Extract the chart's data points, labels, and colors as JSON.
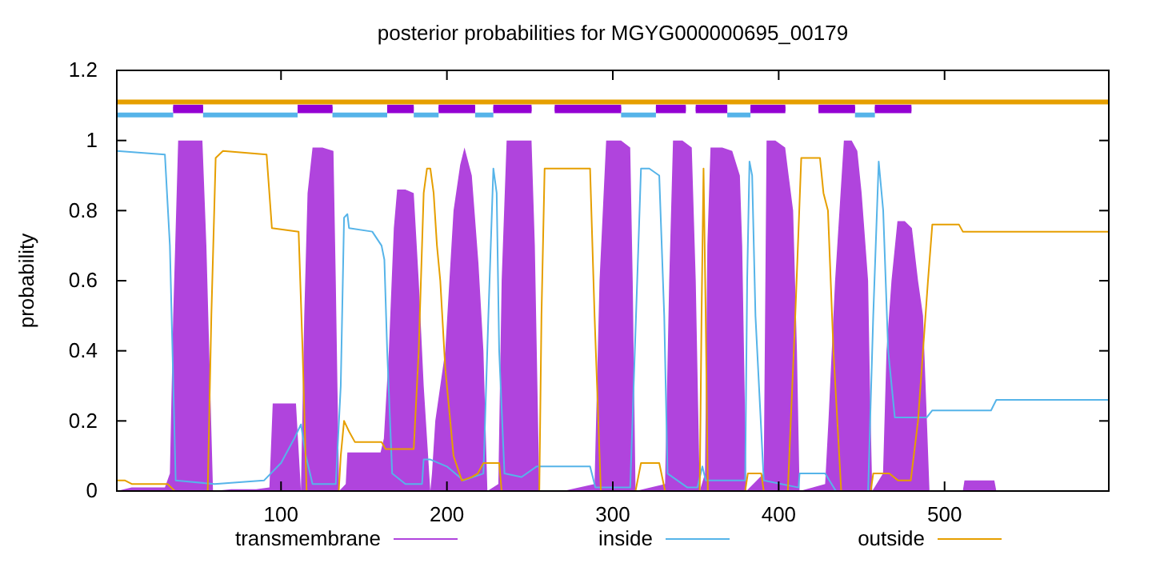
{
  "chart_data": {
    "type": "line",
    "title": "posterior probabilities for MGYG000000695_00179",
    "ylabel": "probability",
    "xlim": [
      1,
      599
    ],
    "xticks": [
      100,
      200,
      300,
      400,
      500
    ],
    "ylim": [
      0,
      1.2
    ],
    "yticks": [
      0,
      {
        "value": 0.2,
        "label": "0.2"
      },
      {
        "value": 0.4,
        "label": "0.4"
      },
      {
        "value": 0.6,
        "label": "0.6"
      },
      {
        "value": 0.8,
        "label": "0.8"
      },
      1,
      {
        "value": 1.2,
        "label": "1.2"
      }
    ],
    "grid": false,
    "legend": "bottom",
    "series": [
      {
        "name": "transmembrane",
        "type": "area",
        "color": "#b044dd",
        "x": [
          1,
          10,
          20,
          30,
          33,
          35,
          38,
          45,
          52.6,
          55,
          59,
          70,
          85,
          93,
          95,
          109,
          112,
          114,
          116,
          119,
          125,
          131.6,
          133,
          135,
          139,
          140,
          160,
          162,
          165,
          168,
          170,
          175,
          180,
          183,
          186,
          190,
          191,
          193,
          196,
          199,
          204,
          208,
          210.6,
          215,
          219,
          222,
          224.4,
          231,
          233,
          236,
          244,
          251,
          253,
          255.7,
          270,
          289,
          292,
          296,
          305,
          310.5,
          312,
          313.7,
          331.5,
          334,
          336.3,
          342,
          347.6,
          350,
          352.4,
          355.6,
          357,
          358.9,
          366,
          372,
          376.6,
          378,
          380.5,
          391,
          392.7,
          398,
          403.9,
          406,
          408.7,
          411,
          412.6,
          428,
          430,
          434,
          439.3,
          444,
          447.4,
          450,
          453.9,
          455,
          456.4,
          462.9,
          465,
          468,
          471.6,
          476,
          480.3,
          484,
          487,
          490.9,
          511,
          512,
          530,
          531.2,
          540,
          599
        ],
        "values": [
          0,
          0.01,
          0.01,
          0.01,
          0.05,
          0.5,
          1,
          1,
          1,
          0.7,
          0,
          0.005,
          0.005,
          0.01,
          0.25,
          0.25,
          0,
          0.5,
          0.85,
          0.98,
          0.98,
          0.97,
          0.6,
          0,
          0.02,
          0.11,
          0.11,
          0.15,
          0.4,
          0.75,
          0.86,
          0.86,
          0.85,
          0.6,
          0.3,
          0,
          0.05,
          0.2,
          0.3,
          0.4,
          0.8,
          0.93,
          0.98,
          0.9,
          0.65,
          0.4,
          0,
          0.02,
          0.6,
          1,
          1,
          1,
          0.7,
          0,
          0,
          0.02,
          0.6,
          1,
          1,
          0.98,
          0.6,
          0,
          0.02,
          0.6,
          1,
          1,
          0.98,
          0.6,
          0,
          0.05,
          0.7,
          0.98,
          0.98,
          0.97,
          0.9,
          0.7,
          0,
          0.05,
          1,
          1,
          0.98,
          0.9,
          0.8,
          0.4,
          0,
          0.02,
          0.2,
          0.6,
          1,
          1,
          0.97,
          0.85,
          0.6,
          0.3,
          0,
          0.05,
          0.4,
          0.6,
          0.77,
          0.77,
          0.75,
          0.6,
          0.5,
          0,
          0,
          0.03,
          0.03,
          0,
          0,
          0
        ]
      },
      {
        "name": "inside",
        "color": "#56b4e9",
        "x": [
          1,
          30,
          33,
          36.5,
          60,
          89.7,
          100,
          108,
          112,
          115,
          119,
          133,
          136,
          138,
          140,
          141,
          155,
          160.6,
          162.3,
          164,
          167,
          175,
          185,
          186,
          190,
          200,
          210,
          222,
          225,
          228,
          230,
          231.5,
          234.7,
          245,
          254,
          286.3,
          289.5,
          310.5,
          314,
          317,
          322,
          328,
          331,
          333,
          345,
          351,
          354,
          356,
          379.8,
          381,
          382.4,
          384,
          386,
          391,
          412,
          412.6,
          428,
          434.5,
          453.9,
          457,
          460.3,
          463,
          466,
          470,
          489.3,
          492.6,
          528,
          531.2,
          599
        ],
        "values": [
          0.97,
          0.96,
          0.7,
          0.03,
          0.02,
          0.03,
          0.08,
          0.15,
          0.19,
          0.1,
          0.02,
          0.02,
          0.3,
          0.78,
          0.79,
          0.75,
          0.74,
          0.7,
          0.66,
          0.4,
          0.05,
          0.02,
          0.02,
          0.09,
          0.09,
          0.07,
          0.03,
          0.05,
          0.5,
          0.92,
          0.85,
          0.4,
          0.05,
          0.04,
          0.07,
          0.07,
          0.01,
          0.01,
          0.5,
          0.92,
          0.92,
          0.9,
          0.5,
          0.05,
          0.01,
          0.01,
          0.07,
          0.03,
          0.03,
          0.6,
          0.94,
          0.9,
          0.5,
          0.03,
          0.01,
          0.05,
          0.05,
          0,
          0,
          0.5,
          0.94,
          0.8,
          0.4,
          0.21,
          0.21,
          0.23,
          0.23,
          0.26,
          0.26
        ]
      },
      {
        "name": "outside",
        "color": "#e69f00",
        "x": [
          1,
          6,
          10,
          31.6,
          36,
          55.8,
          58,
          60.6,
          65,
          91.3,
          94.5,
          110.6,
          113,
          115.4,
          134.8,
          136,
          138,
          141,
          144.5,
          160.6,
          163,
          180,
          183,
          186,
          188,
          190,
          192,
          194,
          196,
          199,
          204,
          209,
          215,
          218.6,
          222,
          231.5,
          233,
          255.7,
          257,
          258.9,
          286.3,
          289,
          292.8,
          313.7,
          317,
          328,
          331.5,
          352.4,
          353.5,
          354.7,
          356,
          357.3,
          379.8,
          381.4,
          389.5,
          391,
          405.5,
          410,
          413.6,
          424.9,
          427,
          429.7,
          433,
          437.7,
          455.5,
          457,
          466.7,
          472,
          479.6,
          484,
          490,
          492.6,
          508.7,
          511,
          513.5,
          599
        ],
        "values": [
          0.03,
          0.03,
          0.02,
          0.02,
          0,
          0,
          0.5,
          0.95,
          0.97,
          0.96,
          0.75,
          0.74,
          0.4,
          0,
          0,
          0.1,
          0.2,
          0.17,
          0.14,
          0.14,
          0.12,
          0.12,
          0.4,
          0.85,
          0.92,
          0.92,
          0.85,
          0.7,
          0.6,
          0.35,
          0.1,
          0.03,
          0.04,
          0.05,
          0.08,
          0.08,
          0,
          0,
          0.5,
          0.92,
          0.92,
          0.5,
          0,
          0,
          0.08,
          0.08,
          0,
          0,
          0.5,
          0.92,
          0.5,
          0,
          0,
          0.05,
          0.05,
          0,
          0,
          0.5,
          0.95,
          0.95,
          0.85,
          0.8,
          0.4,
          0,
          0,
          0.05,
          0.05,
          0.03,
          0.03,
          0.2,
          0.6,
          0.76,
          0.76,
          0.74,
          0.74,
          0.74
        ]
      },
      {
        "color": "#e69f00",
        "x": [
          1,
          599
        ],
        "values": [
          1.11,
          1.11
        ]
      },
      {
        "color": "#56b4e9",
        "x": [
          1,
          35,
          44,
          53,
          110,
          120,
          131,
          164,
          172,
          180,
          195,
          206,
          217,
          228,
          266,
          305,
          326,
          347,
          369,
          383,
          414,
          446,
          458
        ],
        "values": [
          1.073,
          1.073,
          null,
          1.073,
          1.073,
          null,
          1.073,
          1.073,
          null,
          1.073,
          1.073,
          null,
          1.073,
          1.073,
          null,
          1.073,
          1.073,
          null,
          1.073,
          1.073,
          null,
          1.073,
          1.073
        ]
      },
      {
        "color": "#9400d3",
        "x": [
          35,
          53,
          80,
          110,
          131,
          147,
          164,
          180,
          188,
          195,
          217,
          222,
          228,
          251,
          258,
          265,
          305,
          315,
          326,
          344,
          347,
          350,
          369,
          376,
          383,
          404,
          414,
          424,
          446,
          452,
          458,
          480
        ],
        "values": [
          1.09,
          1.09,
          null,
          1.09,
          1.09,
          null,
          1.09,
          1.09,
          null,
          1.09,
          1.09,
          null,
          1.09,
          1.09,
          null,
          1.09,
          1.09,
          null,
          1.09,
          1.09,
          null,
          1.09,
          1.09,
          null,
          1.09,
          1.09,
          null,
          1.09,
          1.09,
          null,
          1.09,
          1.09
        ],
        "lower": [
          1.078,
          1.078,
          null,
          1.078,
          1.078,
          null,
          1.078,
          1.078,
          null,
          1.078,
          1.078,
          null,
          1.078,
          1.078,
          null,
          1.078,
          1.078,
          null,
          1.078,
          1.078,
          null,
          1.078,
          1.078,
          null,
          1.078,
          1.078,
          null,
          1.078,
          1.078,
          null,
          1.078,
          1.078
        ],
        "upper": [
          1.102,
          1.102,
          null,
          1.102,
          1.102,
          null,
          1.102,
          1.102,
          null,
          1.102,
          1.102,
          null,
          1.102,
          1.102,
          null,
          1.102,
          1.102,
          null,
          1.102,
          1.102,
          null,
          1.102,
          1.102,
          null,
          1.102,
          1.102,
          null,
          1.102,
          1.102,
          null,
          1.102,
          1.102
        ]
      }
    ]
  }
}
